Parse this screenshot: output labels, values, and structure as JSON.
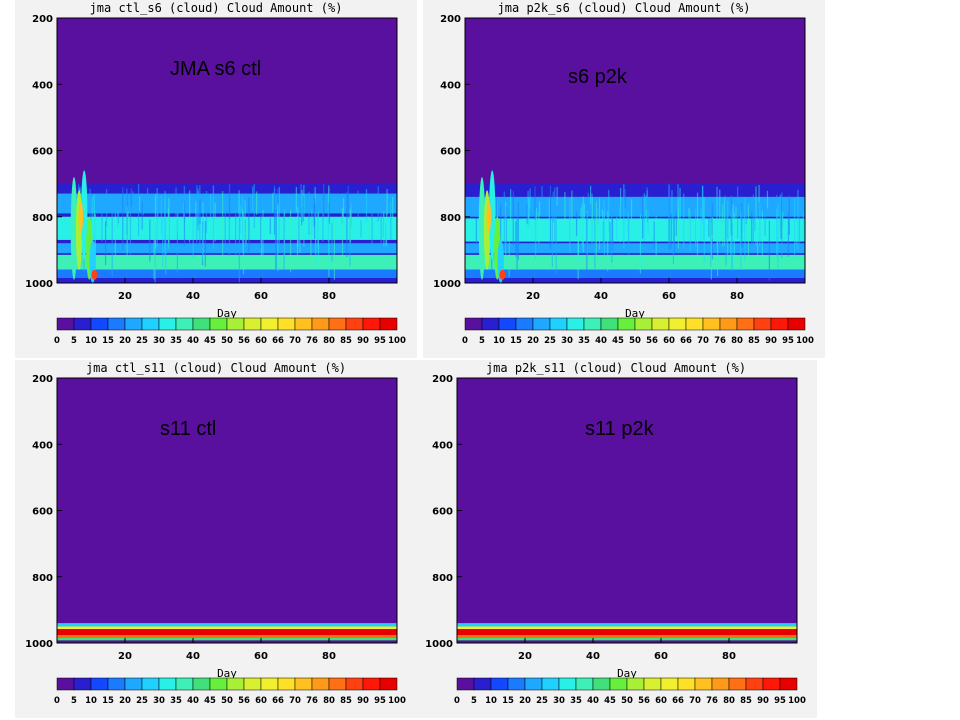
{
  "colorbar": {
    "labels": [
      "0",
      "5",
      "10",
      "15",
      "20",
      "25",
      "30",
      "35",
      "40",
      "45",
      "50",
      "56",
      "60",
      "66",
      "70",
      "76",
      "80",
      "85",
      "90",
      "95",
      "100"
    ],
    "colors": [
      "#5a109e",
      "#2a1fd0",
      "#1248ff",
      "#1a7bff",
      "#1fa8ff",
      "#20d0ff",
      "#29f0e6",
      "#3cf0b8",
      "#40e07a",
      "#66f03c",
      "#a8f038",
      "#d8f030",
      "#f0f030",
      "#ffe028",
      "#ffc020",
      "#ff9a18",
      "#ff7014",
      "#ff4010",
      "#ff1808",
      "#e80000"
    ]
  },
  "chart_data": [
    {
      "type": "heatmap",
      "title": "jma ctl_s6 (cloud) Cloud Amount (%)",
      "overlay_label": "JMA s6 ctl",
      "xlabel": "Day",
      "ylabel": "",
      "x_ticks": [
        20,
        40,
        60,
        80
      ],
      "y_ticks": [
        200,
        400,
        600,
        800,
        1000
      ],
      "xlim": [
        0,
        100
      ],
      "ylim": [
        1000,
        200
      ],
      "pattern": "s6",
      "bands": [
        {
          "p_top": 700,
          "p_bottom": 1000,
          "value": 8
        },
        {
          "p_top": 730,
          "p_bottom": 790,
          "value": 22
        },
        {
          "p_top": 800,
          "p_bottom": 870,
          "value": 30
        },
        {
          "p_top": 880,
          "p_bottom": 910,
          "value": 20
        },
        {
          "p_top": 915,
          "p_bottom": 960,
          "value": 38
        },
        {
          "p_top": 960,
          "p_bottom": 985,
          "value": 18
        }
      ]
    },
    {
      "type": "heatmap",
      "title": "jma p2k_s6 (cloud) Cloud Amount (%)",
      "overlay_label": "s6 p2k",
      "xlabel": "Day",
      "ylabel": "",
      "x_ticks": [
        20,
        40,
        60,
        80
      ],
      "y_ticks": [
        200,
        400,
        600,
        800,
        1000
      ],
      "xlim": [
        0,
        100
      ],
      "ylim": [
        1000,
        200
      ],
      "pattern": "s6",
      "bands": [
        {
          "p_top": 700,
          "p_bottom": 1000,
          "value": 8
        },
        {
          "p_top": 740,
          "p_bottom": 800,
          "value": 22
        },
        {
          "p_top": 805,
          "p_bottom": 875,
          "value": 30
        },
        {
          "p_top": 880,
          "p_bottom": 910,
          "value": 20
        },
        {
          "p_top": 915,
          "p_bottom": 960,
          "value": 38
        },
        {
          "p_top": 960,
          "p_bottom": 985,
          "value": 18
        }
      ]
    },
    {
      "type": "heatmap",
      "title": "jma ctl_s11 (cloud) Cloud Amount (%)",
      "overlay_label": "s11 ctl",
      "xlabel": "Day",
      "ylabel": "",
      "x_ticks": [
        20,
        40,
        60,
        80
      ],
      "y_ticks": [
        200,
        400,
        600,
        800,
        1000
      ],
      "xlim": [
        0,
        100
      ],
      "ylim": [
        1000,
        200
      ],
      "pattern": "s11",
      "bands": [
        {
          "p_top": 940,
          "p_bottom": 950,
          "value": 25
        },
        {
          "p_top": 950,
          "p_bottom": 958,
          "value": 60
        },
        {
          "p_top": 958,
          "p_bottom": 966,
          "value": 95
        },
        {
          "p_top": 966,
          "p_bottom": 976,
          "value": 100
        },
        {
          "p_top": 976,
          "p_bottom": 984,
          "value": 80
        },
        {
          "p_top": 984,
          "p_bottom": 992,
          "value": 40
        }
      ]
    },
    {
      "type": "heatmap",
      "title": "jma p2k_s11 (cloud) Cloud Amount (%)",
      "overlay_label": "s11 p2k",
      "xlabel": "Day",
      "ylabel": "",
      "x_ticks": [
        20,
        40,
        60,
        80
      ],
      "y_ticks": [
        200,
        400,
        600,
        800,
        1000
      ],
      "xlim": [
        0,
        100
      ],
      "ylim": [
        1000,
        200
      ],
      "pattern": "s11",
      "bands": [
        {
          "p_top": 940,
          "p_bottom": 950,
          "value": 25
        },
        {
          "p_top": 950,
          "p_bottom": 958,
          "value": 60
        },
        {
          "p_top": 958,
          "p_bottom": 966,
          "value": 95
        },
        {
          "p_top": 966,
          "p_bottom": 976,
          "value": 100
        },
        {
          "p_top": 976,
          "p_bottom": 984,
          "value": 80
        },
        {
          "p_top": 984,
          "p_bottom": 992,
          "value": 40
        }
      ]
    }
  ]
}
